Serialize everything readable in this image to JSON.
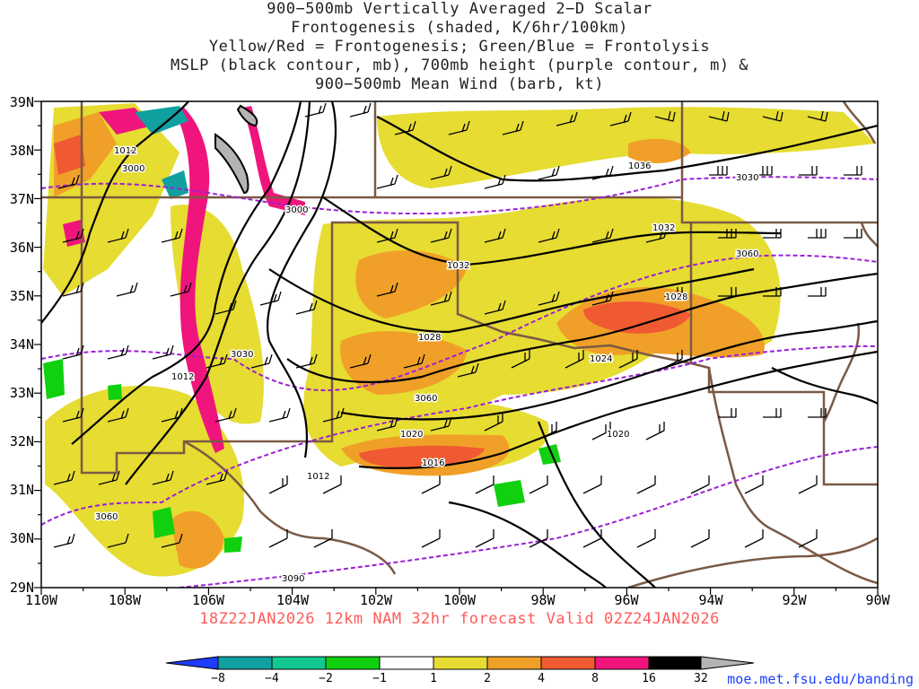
{
  "title_lines": [
    "900−500mb Vertically Averaged 2−D Scalar",
    "Frontogenesis (shaded, K/6hr/100km)",
    "Yellow/Red = Frontogenesis;  Green/Blue = Frontolysis",
    "MSLP (black contour, mb), 700mb height (purple contour, m) &",
    "900−500mb Mean Wind (barb, kt)"
  ],
  "valid_text": "18Z22JAN2026 12km NAM 32hr forecast Valid 02Z24JAN2026",
  "url": "moe.met.fsu.edu/banding",
  "axes": {
    "lon_labels": [
      "110W",
      "108W",
      "106W",
      "104W",
      "102W",
      "100W",
      "98W",
      "96W",
      "94W",
      "92W",
      "90W"
    ],
    "lat_labels": [
      "39N",
      "38N",
      "37N",
      "36N",
      "35N",
      "34N",
      "33N",
      "32N",
      "31N",
      "30N",
      "29N"
    ]
  },
  "colorbar": {
    "labels": [
      "−8",
      "−4",
      "−2",
      "−1",
      "1",
      "2",
      "4",
      "8",
      "16",
      "32"
    ],
    "colors": [
      "#1e3cff",
      "#10a0a0",
      "#10c890",
      "#10d010",
      "#ffffff",
      "#e6dc32",
      "#f0a028",
      "#f05a32",
      "#f0147d",
      "#000000",
      "#b4b4b4"
    ]
  },
  "mslp_labels": [
    "1012",
    "1036",
    "1032",
    "1032",
    "1028",
    "1028",
    "1024",
    "1020",
    "1020",
    "1016",
    "1012",
    "1012"
  ],
  "height_labels": [
    "3000",
    "3000",
    "3030",
    "3060",
    "3030",
    "3060",
    "3060",
    "3090"
  ],
  "colors": {
    "mslp": "#000000",
    "height": "#9b1fd6",
    "borders": "#7a5a45",
    "valid_text": "#ff5a5a",
    "url": "#1a40ff"
  }
}
